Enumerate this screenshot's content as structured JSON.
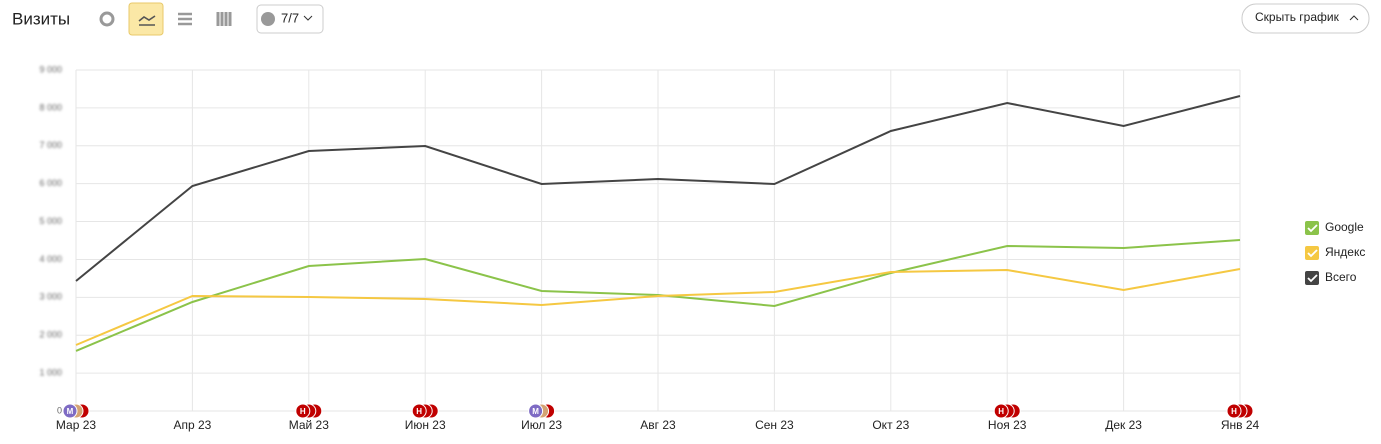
{
  "header": {
    "title": "Визиты",
    "filter_count": "7/7",
    "hide_button": "Скрыть график"
  },
  "chart_data": {
    "type": "line",
    "categories": [
      "Мар 23",
      "Апр 23",
      "Май 23",
      "Июн 23",
      "Июл 23",
      "Авг 23",
      "Сен 23",
      "Окт 23",
      "Ноя 23",
      "Дек 23",
      "Янв 24"
    ],
    "series": [
      {
        "name": "Google",
        "color": "#8bc34a",
        "values": [
          1584,
          2877,
          3827,
          4012,
          3167,
          3062,
          2771,
          3642,
          4355,
          4302,
          4513
        ]
      },
      {
        "name": "Яндекс",
        "color": "#f5c842",
        "values": [
          1742,
          3035,
          3009,
          2956,
          2798,
          3035,
          3141,
          3669,
          3721,
          3194,
          3748
        ]
      },
      {
        "name": "Всего",
        "color": "#444444",
        "values": [
          3431,
          5938,
          6862,
          6994,
          5991,
          6123,
          5991,
          7390,
          8129,
          7522,
          8314
        ]
      }
    ],
    "ylim": [
      0,
      9000
    ],
    "yticks": [
      0,
      {
        "value": 1000,
        "label": "1 000"
      },
      {
        "value": 2000,
        "label": "2 000"
      },
      {
        "value": 3000,
        "label": "3 000"
      },
      {
        "value": 4000,
        "label": "4 000"
      },
      {
        "value": 5000,
        "label": "5 000"
      },
      {
        "value": 6000,
        "label": "6 000"
      },
      {
        "value": 7000,
        "label": "7 000"
      },
      {
        "value": 8000,
        "label": "8 000"
      },
      {
        "value": 9000,
        "label": "9 000"
      }
    ],
    "grid": true,
    "legend": "right",
    "annotations": [
      {
        "x": "Мар 23",
        "label": "М",
        "color": "#7e6bc4"
      },
      {
        "x": "Май 23",
        "label": "Н",
        "color": "#c00000"
      },
      {
        "x": "Июн 23",
        "label": "Н",
        "color": "#c00000"
      },
      {
        "x": "Июл 23",
        "label": "М",
        "color": "#7e6bc4"
      },
      {
        "x": "Ноя 23",
        "label": "Н",
        "color": "#c00000"
      },
      {
        "x": "Янв 24",
        "label": "Н",
        "color": "#c00000"
      }
    ]
  }
}
